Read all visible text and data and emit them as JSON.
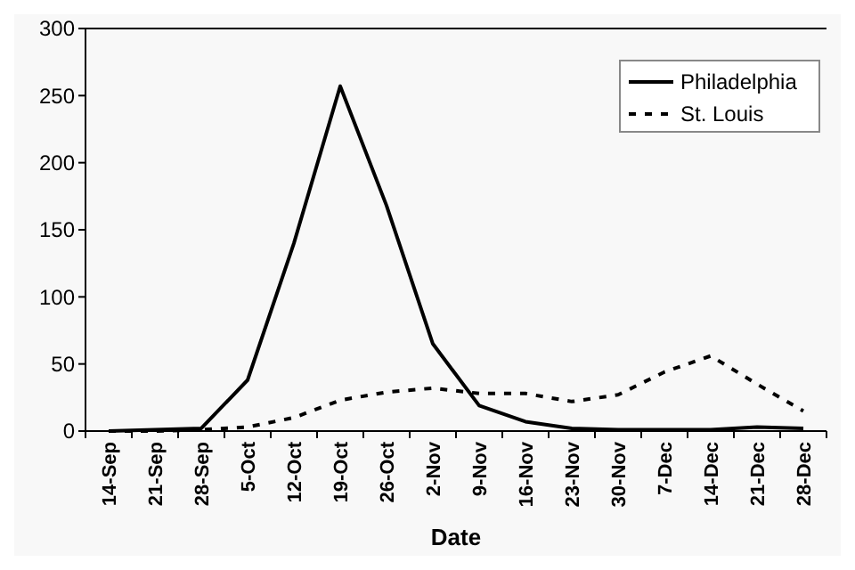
{
  "chart_data": {
    "type": "line",
    "xlabel": "Date",
    "categories": [
      "14-Sep",
      "21-Sep",
      "28-Sep",
      "5-Oct",
      "12-Oct",
      "19-Oct",
      "26-Oct",
      "2-Nov",
      "9-Nov",
      "16-Nov",
      "23-Nov",
      "30-Nov",
      "7-Dec",
      "14-Dec",
      "21-Dec",
      "28-Dec"
    ],
    "series": [
      {
        "name": "Philadelphia",
        "color": "#000000",
        "line_style": "solid",
        "values": [
          0,
          1,
          2,
          38,
          140,
          257,
          168,
          65,
          19,
          7,
          2,
          1,
          1,
          1,
          3,
          2
        ]
      },
      {
        "name": "St. Louis",
        "color": "#000000",
        "line_style": "dashed",
        "values": [
          0,
          0,
          1,
          3,
          10,
          23,
          29,
          32,
          28,
          28,
          22,
          27,
          44,
          56,
          35,
          15
        ]
      }
    ],
    "ylim": [
      0,
      300
    ],
    "yticks": [
      0,
      50,
      100,
      150,
      200,
      250,
      300
    ],
    "grid": false,
    "legend": "top right",
    "marker": "none"
  }
}
